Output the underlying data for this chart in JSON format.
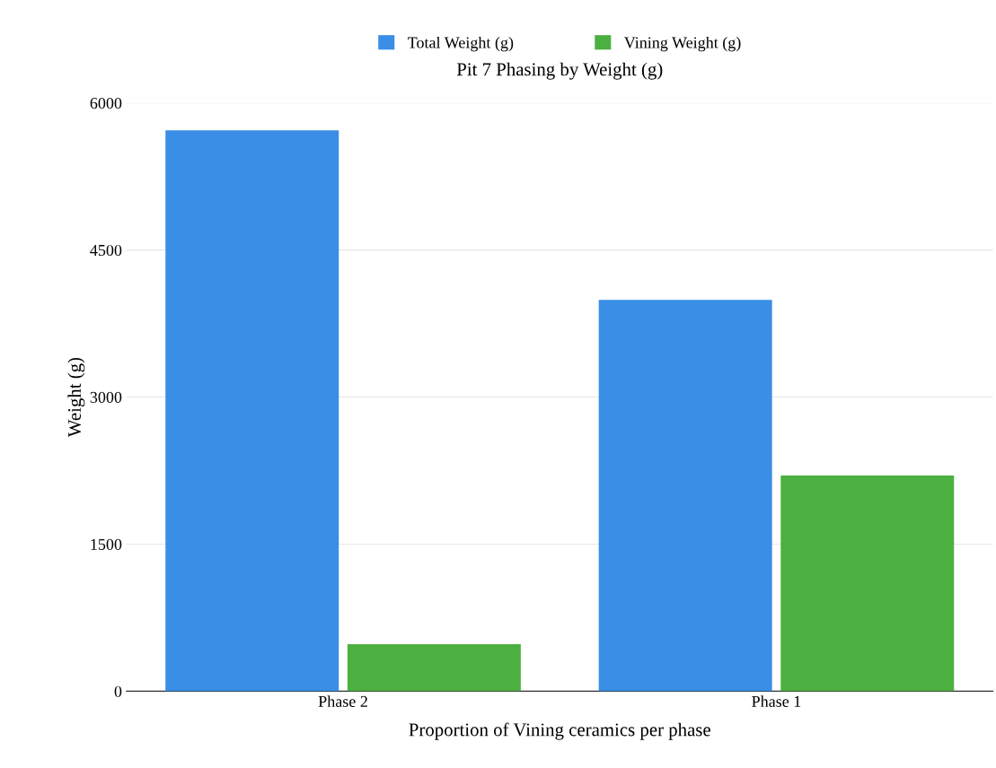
{
  "chart_data": {
    "type": "bar",
    "title": "Pit 7 Phasing by Weight (g)",
    "xlabel": "Proportion of Vining ceramics per phase",
    "ylabel": "Weight (g)",
    "categories": [
      "Phase 2",
      "Phase 1"
    ],
    "series": [
      {
        "name": "Total Weight (g)",
        "color": "#3a8ee6",
        "values": [
          5720,
          3990
        ]
      },
      {
        "name": "Vining Weight (g)",
        "color": "#4cb040",
        "values": [
          480,
          2200
        ]
      }
    ],
    "ylim": [
      0,
      6000
    ],
    "yticks": [
      0,
      1500,
      3000,
      4500,
      6000
    ],
    "grid": "y",
    "legend": "top"
  }
}
